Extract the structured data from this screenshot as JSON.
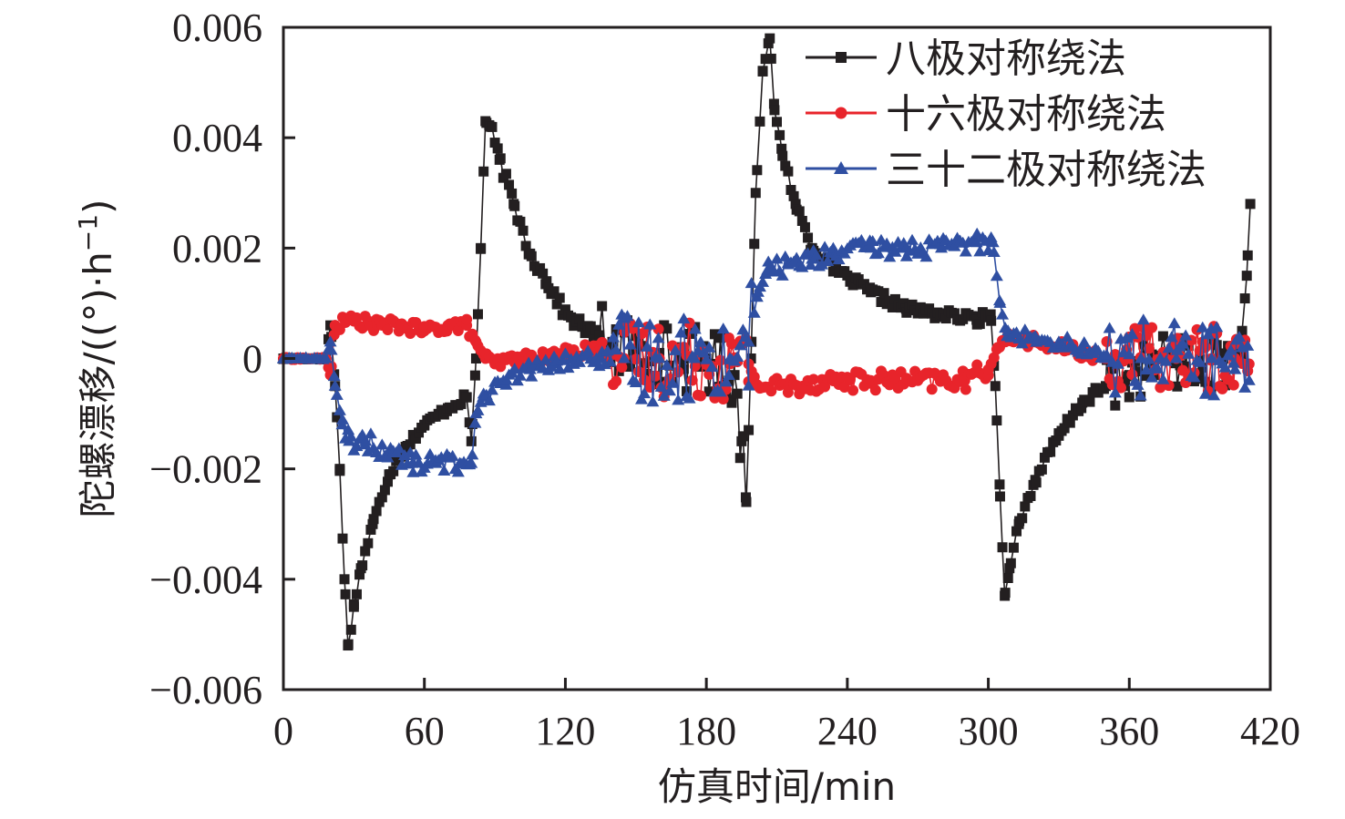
{
  "chart_data": {
    "type": "line",
    "title": "",
    "xlabel": "仿真时间/min",
    "ylabel": "陀螺漂移/((°)·h⁻¹)",
    "ylabel_parts": {
      "main": "陀螺漂移/((°)·h",
      "sup": "−1",
      "tail": ")"
    },
    "xlim": [
      0,
      420
    ],
    "ylim": [
      -0.006,
      0.006
    ],
    "xticks": [
      0,
      60,
      120,
      180,
      240,
      300,
      360,
      420
    ],
    "xtick_labels": [
      "0",
      "60",
      "120",
      "180",
      "240",
      "300",
      "360",
      "420"
    ],
    "yticks": [
      -0.006,
      -0.004,
      -0.002,
      0,
      0.002,
      0.004,
      0.006
    ],
    "ytick_labels": [
      "−0.006",
      "−0.004",
      "−0.002",
      "0",
      "0.002",
      "0.004",
      "0.006"
    ],
    "grid": false,
    "legend_position": "top-right",
    "sample_step_min": 1.2,
    "series": [
      {
        "name": "八极对称绕法",
        "color": "#231f20",
        "marker": "square",
        "control_points": [
          [
            0,
            0
          ],
          [
            18,
            0
          ],
          [
            20,
            0.0006
          ],
          [
            22,
            -0.0005
          ],
          [
            24,
            -0.002
          ],
          [
            26,
            -0.004
          ],
          [
            27.5,
            -0.0052
          ],
          [
            30,
            -0.0045
          ],
          [
            33,
            -0.0038
          ],
          [
            38,
            -0.003
          ],
          [
            45,
            -0.0021
          ],
          [
            52,
            -0.0016
          ],
          [
            60,
            -0.0012
          ],
          [
            70,
            -0.0009
          ],
          [
            78,
            -0.0007
          ],
          [
            80,
            -0.0015
          ],
          [
            82,
            0.0
          ],
          [
            84,
            0.002
          ],
          [
            86,
            0.0043
          ],
          [
            88,
            0.0042
          ],
          [
            92,
            0.0036
          ],
          [
            98,
            0.0028
          ],
          [
            105,
            0.0019
          ],
          [
            112,
            0.0014
          ],
          [
            120,
            0.0008
          ],
          [
            130,
            0.0005
          ],
          [
            140,
            0.0003
          ],
          [
            150,
            0.0001
          ],
          [
            160,
            0.0001
          ],
          [
            170,
            0.0
          ],
          [
            180,
            0.0
          ],
          [
            192,
            -0.0003
          ],
          [
            195,
            -0.0015
          ],
          [
            197,
            -0.0026
          ],
          [
            199,
            0.0
          ],
          [
            201,
            0.003
          ],
          [
            204,
            0.0052
          ],
          [
            207,
            0.0058
          ],
          [
            209,
            0.0045
          ],
          [
            212,
            0.0038
          ],
          [
            218,
            0.0028
          ],
          [
            225,
            0.002
          ],
          [
            235,
            0.0016
          ],
          [
            250,
            0.0012
          ],
          [
            265,
            0.0009
          ],
          [
            280,
            0.0008
          ],
          [
            295,
            0.0007
          ],
          [
            301,
            0.0008
          ],
          [
            303,
            -0.0005
          ],
          [
            305,
            -0.0025
          ],
          [
            307,
            -0.0043
          ],
          [
            309,
            -0.0038
          ],
          [
            313,
            -0.003
          ],
          [
            320,
            -0.0022
          ],
          [
            330,
            -0.0014
          ],
          [
            340,
            -0.0008
          ],
          [
            350,
            -0.0005
          ],
          [
            360,
            -0.0003
          ],
          [
            370,
            -0.0001
          ],
          [
            380,
            0.0
          ],
          [
            390,
            -0.0003
          ],
          [
            400,
            0.0
          ],
          [
            406,
            0.0
          ],
          [
            408,
            0.0005
          ],
          [
            410,
            0.0015
          ],
          [
            411.5,
            0.0028
          ]
        ],
        "noise": [
          [
            0,
            18,
            2e-05
          ],
          [
            20,
            80,
            8e-05
          ],
          [
            88,
            135,
            0.00012
          ],
          [
            135,
            196,
            0.0006
          ],
          [
            210,
            300,
            0.0001
          ],
          [
            310,
            350,
            0.0001
          ],
          [
            350,
            408,
            0.0005
          ]
        ]
      },
      {
        "name": "十六极对称绕法",
        "color": "#e8242b",
        "marker": "circle",
        "control_points": [
          [
            0,
            0
          ],
          [
            18,
            0
          ],
          [
            20,
            -0.0003
          ],
          [
            22,
            0.0006
          ],
          [
            30,
            0.0007
          ],
          [
            40,
            0.0006
          ],
          [
            50,
            0.0006
          ],
          [
            60,
            0.0005
          ],
          [
            70,
            0.0006
          ],
          [
            78,
            0.0006
          ],
          [
            82,
            0.0003
          ],
          [
            86,
            0.0
          ],
          [
            90,
            -0.0001
          ],
          [
            100,
            0.0
          ],
          [
            110,
            0.0
          ],
          [
            120,
            0.0001
          ],
          [
            135,
            0.0002
          ],
          [
            145,
            0.0
          ],
          [
            160,
            0.0
          ],
          [
            175,
            0.0
          ],
          [
            190,
            -0.0001
          ],
          [
            198,
            -0.0001
          ],
          [
            202,
            -0.0005
          ],
          [
            215,
            -0.0005
          ],
          [
            230,
            -0.0004
          ],
          [
            250,
            -0.0004
          ],
          [
            270,
            -0.0004
          ],
          [
            290,
            -0.0004
          ],
          [
            300,
            -0.0002
          ],
          [
            304,
            0.0002
          ],
          [
            310,
            0.0004
          ],
          [
            320,
            0.0003
          ],
          [
            330,
            0.0002
          ],
          [
            340,
            0.0001
          ],
          [
            350,
            0.0
          ],
          [
            360,
            0.0
          ],
          [
            380,
            0.0
          ],
          [
            395,
            0.0
          ],
          [
            405,
            0.0
          ],
          [
            411,
            -0.0001
          ]
        ],
        "noise": [
          [
            0,
            18,
            2e-05
          ],
          [
            22,
            80,
            0.00012
          ],
          [
            86,
            140,
            0.00012
          ],
          [
            140,
            198,
            0.0007
          ],
          [
            202,
            300,
            0.00018
          ],
          [
            304,
            350,
            0.00012
          ],
          [
            350,
            411,
            0.0006
          ]
        ]
      },
      {
        "name": "三十二极对称绕法",
        "color": "#2f4fa2",
        "marker": "triangle",
        "control_points": [
          [
            0,
            0
          ],
          [
            18,
            0
          ],
          [
            20,
            0.0003
          ],
          [
            22,
            -0.0005
          ],
          [
            25,
            -0.0012
          ],
          [
            28,
            -0.0015
          ],
          [
            35,
            -0.0015
          ],
          [
            45,
            -0.0017
          ],
          [
            55,
            -0.0019
          ],
          [
            65,
            -0.0019
          ],
          [
            75,
            -0.0019
          ],
          [
            80,
            -0.0019
          ],
          [
            82,
            -0.001
          ],
          [
            85,
            -0.0007
          ],
          [
            95,
            -0.0004
          ],
          [
            105,
            -0.0002
          ],
          [
            115,
            -0.0001
          ],
          [
            125,
            0.0
          ],
          [
            135,
            0.0
          ],
          [
            145,
            0.0
          ],
          [
            160,
            0.0
          ],
          [
            175,
            0.0
          ],
          [
            190,
            0.0
          ],
          [
            198,
            0.0003
          ],
          [
            202,
            0.0012
          ],
          [
            206,
            0.0016
          ],
          [
            215,
            0.0017
          ],
          [
            225,
            0.0018
          ],
          [
            235,
            0.0019
          ],
          [
            250,
            0.002
          ],
          [
            265,
            0.002
          ],
          [
            280,
            0.002
          ],
          [
            295,
            0.0021
          ],
          [
            302,
            0.0021
          ],
          [
            305,
            0.001
          ],
          [
            308,
            0.0004
          ],
          [
            320,
            0.0004
          ],
          [
            330,
            0.0003
          ],
          [
            340,
            0.0002
          ],
          [
            350,
            0.0
          ],
          [
            365,
            0.0
          ],
          [
            380,
            0.0
          ],
          [
            395,
            0.0
          ],
          [
            405,
            -0.0002
          ],
          [
            411,
            -0.0004
          ]
        ],
        "noise": [
          [
            0,
            18,
            2e-05
          ],
          [
            25,
            80,
            0.00018
          ],
          [
            85,
            140,
            0.00015
          ],
          [
            140,
            200,
            0.0008
          ],
          [
            206,
            302,
            0.00018
          ],
          [
            308,
            350,
            0.00014
          ],
          [
            350,
            411,
            0.0007
          ]
        ]
      }
    ]
  }
}
